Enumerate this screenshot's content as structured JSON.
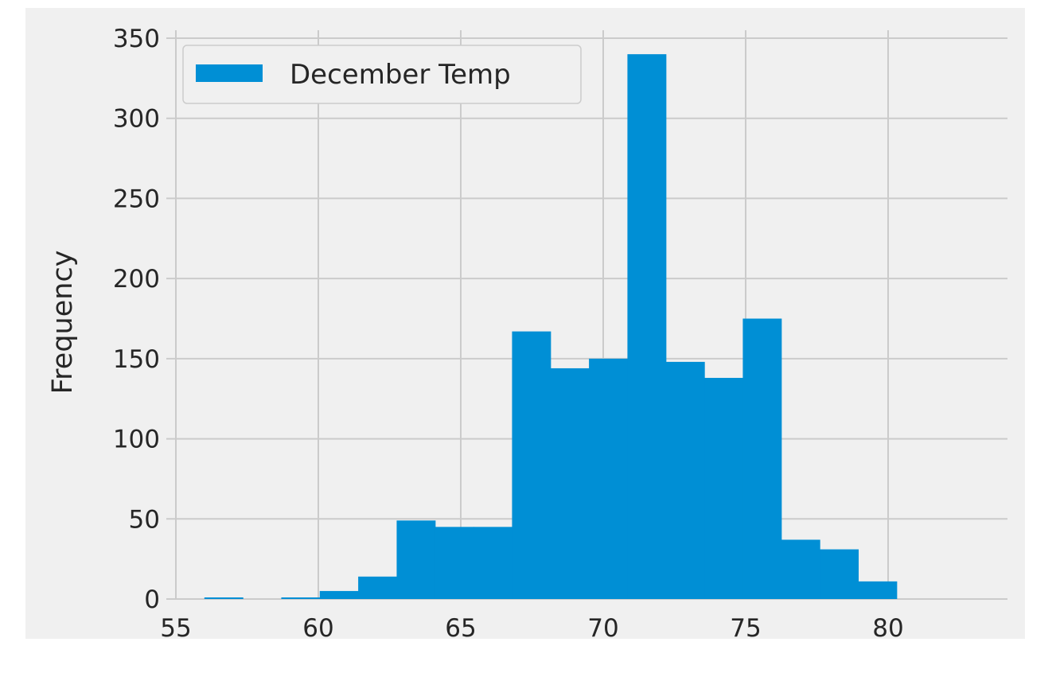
{
  "chart_data": {
    "type": "bar",
    "subtype": "histogram",
    "title": "",
    "xlabel": "",
    "ylabel": "Frequency",
    "xlim": [
      54.8,
      84.2
    ],
    "ylim": [
      0,
      355
    ],
    "xticks": [
      55,
      60,
      65,
      70,
      75,
      80
    ],
    "yticks": [
      0,
      50,
      100,
      150,
      200,
      250,
      300,
      350
    ],
    "grid": true,
    "legend_position": "upper-left",
    "bin_edges": [
      56.0,
      57.35,
      58.7,
      60.05,
      61.4,
      62.75,
      64.1,
      65.45,
      66.8,
      68.15,
      69.5,
      70.85,
      72.2,
      73.55,
      74.9,
      76.25,
      77.6,
      78.95,
      80.3
    ],
    "series": [
      {
        "name": "December Temp",
        "values": [
          1,
          0,
          1,
          5,
          14,
          49,
          45,
          45,
          167,
          144,
          150,
          340,
          148,
          138,
          175,
          37,
          31,
          11
        ],
        "color": "#008fd5"
      }
    ],
    "colors": {
      "figure_background": "#ffffff",
      "axes_background": "#f0f0f0",
      "grid": "#cbcbcb",
      "text": "#262626",
      "bar": "#008fd5"
    }
  }
}
